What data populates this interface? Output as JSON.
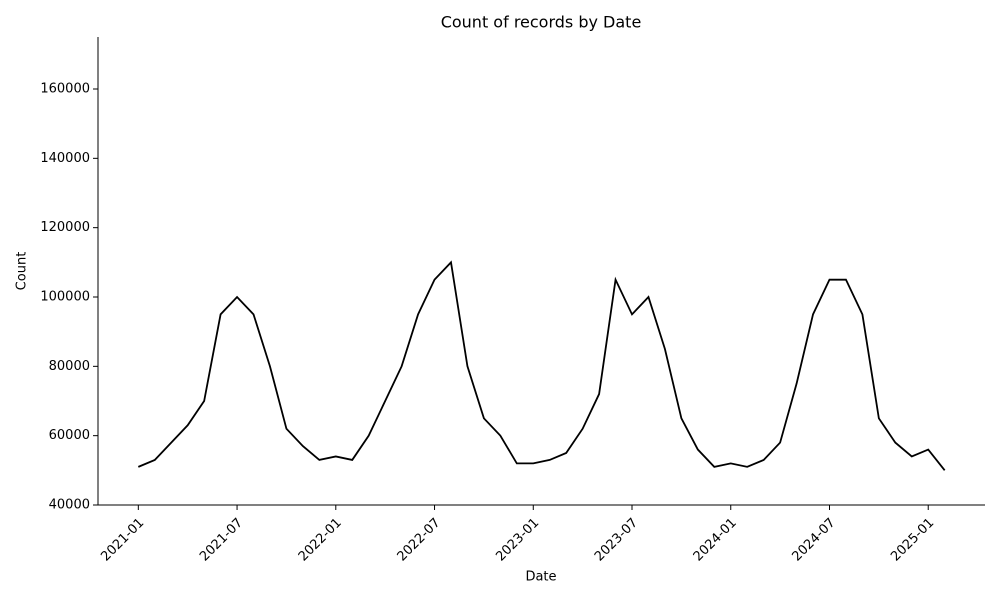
{
  "chart_data": {
    "type": "line",
    "title": "Count of records by Date",
    "x_label": "Date",
    "y_label": "Count",
    "x": [
      "2021-01",
      "2021-02",
      "2021-03",
      "2021-04",
      "2021-05",
      "2021-06",
      "2021-07",
      "2021-08",
      "2021-09",
      "2021-10",
      "2021-11",
      "2021-12",
      "2022-01",
      "2022-02",
      "2022-03",
      "2022-04",
      "2022-05",
      "2022-06",
      "2022-07",
      "2022-08",
      "2022-09",
      "2022-10",
      "2022-11",
      "2022-12",
      "2023-01",
      "2023-02",
      "2023-03",
      "2023-04",
      "2023-05",
      "2023-06",
      "2023-07",
      "2023-08",
      "2023-09",
      "2023-10",
      "2023-11",
      "2023-12",
      "2024-01",
      "2024-02",
      "2024-03",
      "2024-04",
      "2024-05",
      "2024-06",
      "2024-07",
      "2024-08",
      "2024-09",
      "2024-10",
      "2024-11",
      "2024-12",
      "2025-01",
      "2025-02"
    ],
    "series": [
      {
        "name": "Count",
        "color": "#000000",
        "values": [
          51000,
          53000,
          58000,
          63000,
          70000,
          95000,
          100000,
          95000,
          80000,
          62000,
          57000,
          53000,
          54000,
          53000,
          60000,
          70000,
          80000,
          95000,
          105000,
          110000,
          80000,
          65000,
          60000,
          52000,
          52000,
          53000,
          55000,
          62000,
          72000,
          105000,
          95000,
          100000,
          85000,
          65000,
          56000,
          51000,
          52000,
          51000,
          53000,
          58000,
          75000,
          95000,
          105000,
          105000,
          95000,
          65000,
          58000,
          54000,
          56000,
          50000
        ]
      }
    ],
    "ylim": [
      40000,
      175000
    ],
    "yticks": [
      40000,
      60000,
      80000,
      100000,
      120000,
      140000,
      160000
    ],
    "xticks": [
      "2021-01",
      "2021-07",
      "2022-01",
      "2022-07",
      "2023-01",
      "2023-07",
      "2024-01",
      "2024-07",
      "2025-01"
    ]
  }
}
